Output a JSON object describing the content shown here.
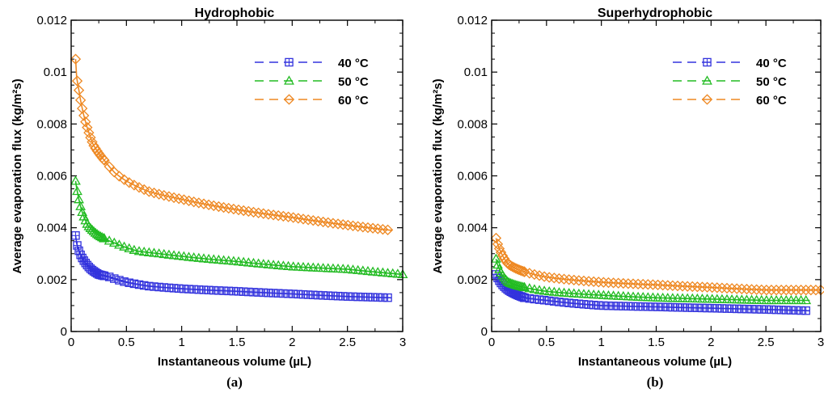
{
  "chart_data": [
    {
      "type": "scatter",
      "panel_label": "(a)",
      "title": "Hydrophobic",
      "xlabel": "Instantaneous volume (µL)",
      "ylabel": "Average evaporation flux (kg/m²s)",
      "xlim": [
        0,
        3
      ],
      "ylim": [
        0,
        0.012
      ],
      "xticks": [
        "0",
        "0.5",
        "1",
        "1.5",
        "2",
        "2.5",
        "3"
      ],
      "yticks": [
        "0",
        "0.002",
        "0.004",
        "0.006",
        "0.008",
        "0.01",
        "0.012"
      ],
      "grid": false,
      "legend": "top-right",
      "series": [
        {
          "name": "40 °C",
          "marker": "square-plus",
          "color": "#3333dd",
          "points": [
            [
              0.04,
              0.0037
            ],
            [
              0.05,
              0.0034
            ],
            [
              0.08,
              0.003
            ],
            [
              0.12,
              0.0027
            ],
            [
              0.18,
              0.0024
            ],
            [
              0.25,
              0.0022
            ],
            [
              0.35,
              0.0021
            ],
            [
              0.5,
              0.0019
            ],
            [
              0.7,
              0.00175
            ],
            [
              1.0,
              0.00165
            ],
            [
              1.5,
              0.00155
            ],
            [
              2.0,
              0.00145
            ],
            [
              2.5,
              0.00135
            ],
            [
              2.9,
              0.0013
            ]
          ]
        },
        {
          "name": "50 °C",
          "marker": "triangle",
          "color": "#22bb22",
          "points": [
            [
              0.04,
              0.0058
            ],
            [
              0.06,
              0.0053
            ],
            [
              0.1,
              0.0046
            ],
            [
              0.15,
              0.0041
            ],
            [
              0.25,
              0.0037
            ],
            [
              0.4,
              0.0034
            ],
            [
              0.6,
              0.0031
            ],
            [
              0.8,
              0.003
            ],
            [
              1.0,
              0.0029
            ],
            [
              1.5,
              0.0027
            ],
            [
              2.0,
              0.0025
            ],
            [
              2.5,
              0.0024
            ],
            [
              3.0,
              0.0022
            ]
          ]
        },
        {
          "name": "60 °C",
          "marker": "diamond",
          "color": "#ee8822",
          "points": [
            [
              0.04,
              0.0105
            ],
            [
              0.05,
              0.0098
            ],
            [
              0.07,
              0.0093
            ],
            [
              0.1,
              0.0086
            ],
            [
              0.15,
              0.0078
            ],
            [
              0.2,
              0.0072
            ],
            [
              0.3,
              0.0066
            ],
            [
              0.4,
              0.0061
            ],
            [
              0.5,
              0.0058
            ],
            [
              0.7,
              0.0054
            ],
            [
              1.0,
              0.0051
            ],
            [
              1.5,
              0.0047
            ],
            [
              2.0,
              0.0044
            ],
            [
              2.5,
              0.0041
            ],
            [
              2.9,
              0.0039
            ]
          ]
        }
      ]
    },
    {
      "type": "scatter",
      "panel_label": "(b)",
      "title": "Superhydrophobic",
      "xlabel": "Instantaneous volume (µL)",
      "ylabel": "Average evaporation flux (kg/m²s)",
      "xlim": [
        0,
        3
      ],
      "ylim": [
        0,
        0.012
      ],
      "xticks": [
        "0",
        "0.5",
        "1",
        "1.5",
        "2",
        "2.5",
        "3"
      ],
      "yticks": [
        "0",
        "0.002",
        "0.004",
        "0.006",
        "0.008",
        "0.01",
        "0.012"
      ],
      "grid": false,
      "legend": "top-right",
      "series": [
        {
          "name": "40 °C",
          "marker": "square-plus",
          "color": "#3333dd",
          "points": [
            [
              0.04,
              0.0022
            ],
            [
              0.08,
              0.0019
            ],
            [
              0.15,
              0.0016
            ],
            [
              0.3,
              0.0013
            ],
            [
              0.5,
              0.0012
            ],
            [
              1.0,
              0.001
            ],
            [
              1.5,
              0.00095
            ],
            [
              2.0,
              0.0009
            ],
            [
              2.5,
              0.00085
            ],
            [
              2.9,
              0.0008
            ]
          ]
        },
        {
          "name": "50 °C",
          "marker": "triangle",
          "color": "#22bb22",
          "points": [
            [
              0.04,
              0.0028
            ],
            [
              0.08,
              0.0023
            ],
            [
              0.15,
              0.0019
            ],
            [
              0.3,
              0.0017
            ],
            [
              0.5,
              0.00155
            ],
            [
              1.0,
              0.0014
            ],
            [
              1.5,
              0.0013
            ],
            [
              2.0,
              0.00125
            ],
            [
              2.5,
              0.0012
            ],
            [
              2.9,
              0.0012
            ]
          ]
        },
        {
          "name": "60 °C",
          "marker": "diamond",
          "color": "#ee8822",
          "points": [
            [
              0.04,
              0.0036
            ],
            [
              0.08,
              0.0031
            ],
            [
              0.15,
              0.0026
            ],
            [
              0.3,
              0.0023
            ],
            [
              0.5,
              0.0021
            ],
            [
              1.0,
              0.0019
            ],
            [
              1.5,
              0.0018
            ],
            [
              2.0,
              0.0017
            ],
            [
              2.5,
              0.0016
            ],
            [
              3.0,
              0.0016
            ]
          ]
        }
      ]
    }
  ]
}
